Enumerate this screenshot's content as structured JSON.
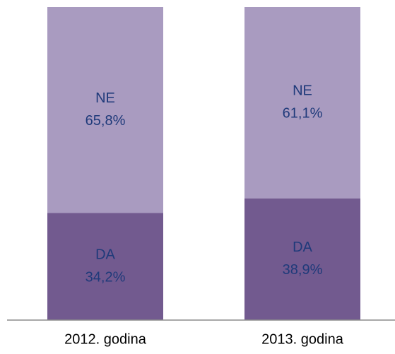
{
  "chart_data": {
    "type": "stacked_bar",
    "categories": [
      "2012. godina",
      "2013. godina"
    ],
    "series": [
      {
        "name": "DA",
        "color": "#725a8f",
        "values": [
          34.2,
          38.9
        ],
        "value_labels": [
          "34,2%",
          "38,9%"
        ]
      },
      {
        "name": "NE",
        "color": "#a99bc0",
        "values": [
          65.8,
          61.1
        ],
        "value_labels": [
          "65,8%",
          "61,1%"
        ]
      }
    ],
    "ylim": [
      0,
      100
    ]
  }
}
